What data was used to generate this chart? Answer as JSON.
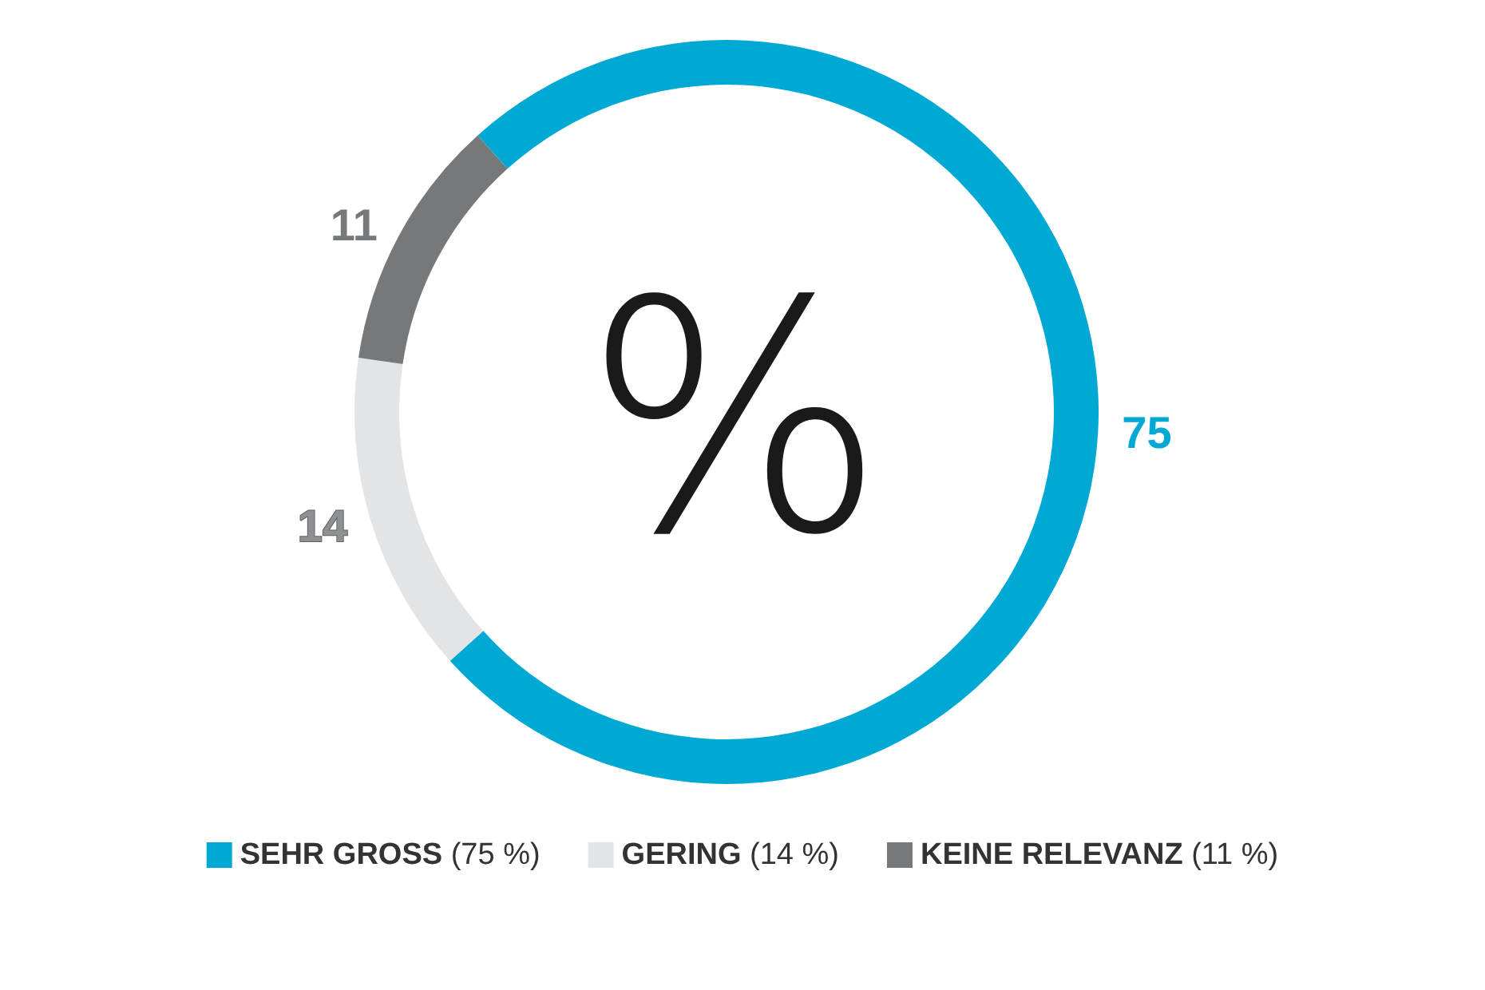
{
  "chart_data": {
    "type": "donut",
    "title": "%",
    "categories": [
      "SEHR GROSS (75 %)",
      "GERING (14 %)",
      "KEINE RELEVANZ (11 %)"
    ],
    "values": [
      75,
      14,
      11
    ],
    "colors": [
      "#00a8d4",
      "#e2e4e5",
      "#76797b"
    ],
    "data_labels": true,
    "legend": "bottom"
  }
}
